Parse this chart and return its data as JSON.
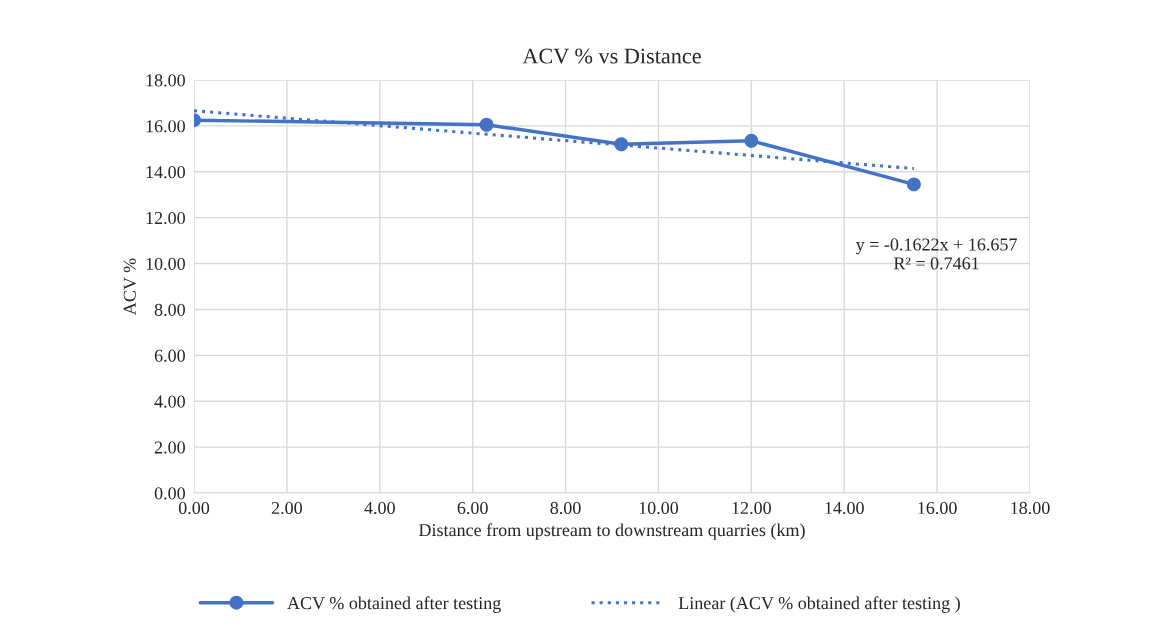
{
  "chart_data": {
    "type": "line",
    "title": "ACV % vs Distance",
    "xlabel": "Distance from upstream to downstream quarries (km)",
    "ylabel": "ACV %",
    "series": [
      {
        "name": "ACV % obtained after testing",
        "color": "#4472c4",
        "x": [
          0,
          6.3,
          9.2,
          12.0,
          15.5
        ],
        "values": [
          16.25,
          16.05,
          15.2,
          15.35,
          13.45
        ],
        "marker": "circle",
        "line_style": "solid"
      },
      {
        "name": "Linear (ACV % obtained after testing )",
        "color": "#4472c4",
        "x": [
          0,
          15.5
        ],
        "values": [
          16.66,
          14.14
        ],
        "marker": "none",
        "line_style": "dotted"
      }
    ],
    "annotations": [
      "y = -0.1622x + 16.657\nR² = 0.7461"
    ],
    "xlim": [
      0,
      18
    ],
    "ylim": [
      0,
      18
    ],
    "xticks": [
      {
        "value": 0,
        "label": "0.00"
      },
      {
        "value": 2,
        "label": "2.00"
      },
      {
        "value": 4,
        "label": "4.00"
      },
      {
        "value": 6,
        "label": "6.00"
      },
      {
        "value": 8,
        "label": "8.00"
      },
      {
        "value": 10,
        "label": "10.00"
      },
      {
        "value": 12,
        "label": "12.00"
      },
      {
        "value": 14,
        "label": "14.00"
      },
      {
        "value": 16,
        "label": "16.00"
      },
      {
        "value": 18,
        "label": "18.00"
      }
    ],
    "yticks": [
      {
        "value": 0,
        "label": "0.00"
      },
      {
        "value": 2,
        "label": "2.00"
      },
      {
        "value": 4,
        "label": "4.00"
      },
      {
        "value": 6,
        "label": "6.00"
      },
      {
        "value": 8,
        "label": "8.00"
      },
      {
        "value": 10,
        "label": "10.00"
      },
      {
        "value": 12,
        "label": "12.00"
      },
      {
        "value": 14,
        "label": "14.00"
      },
      {
        "value": 16,
        "label": "16.00"
      },
      {
        "value": 18,
        "label": "18.00"
      }
    ],
    "grid": true,
    "legend": "bottom"
  }
}
